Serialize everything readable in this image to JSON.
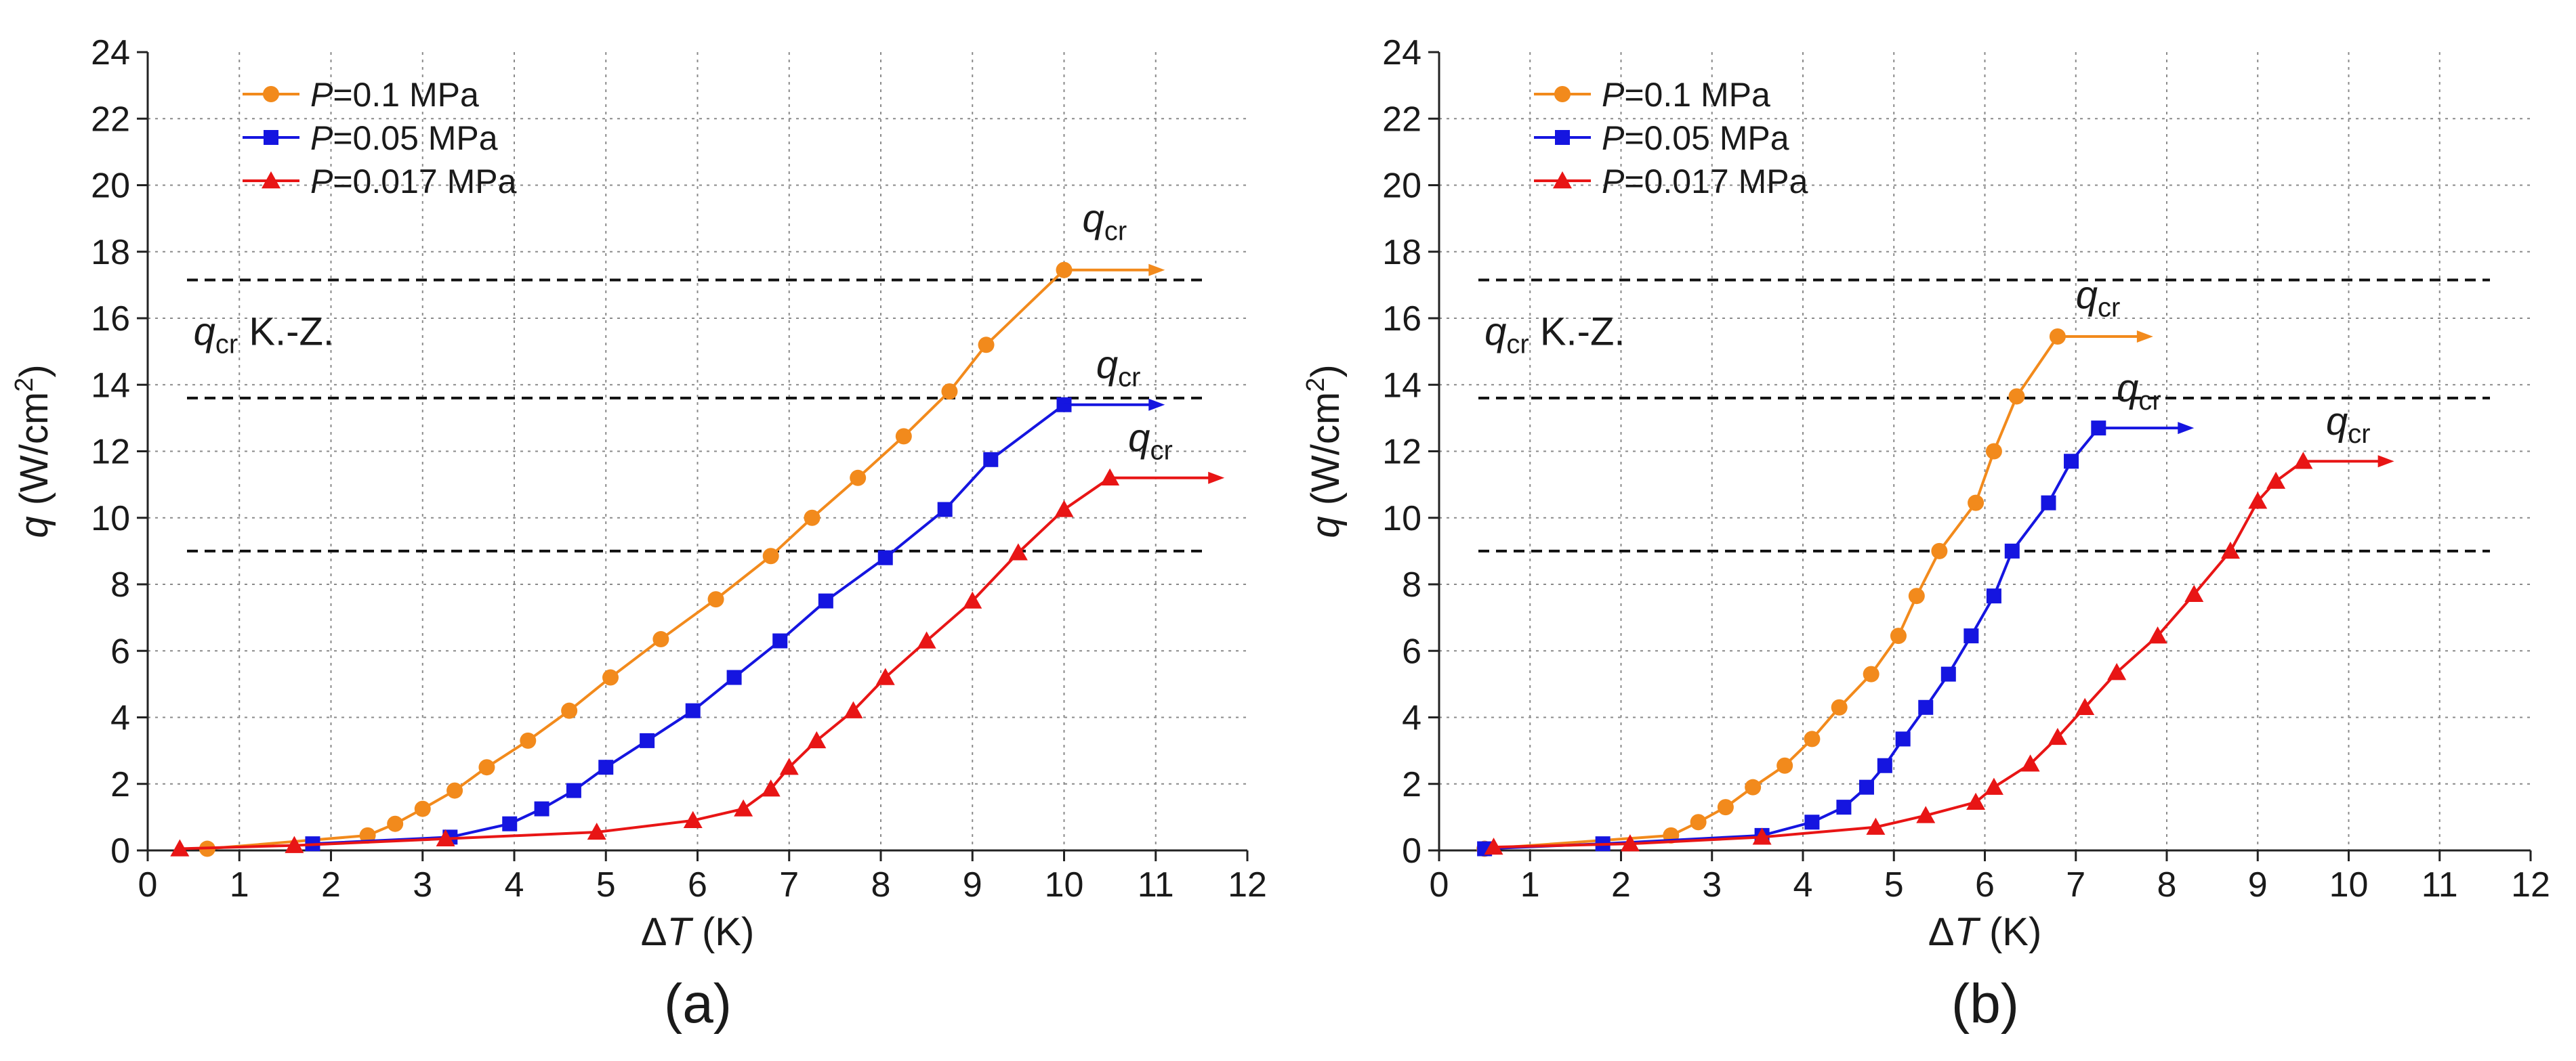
{
  "chart_data": [
    {
      "panel_label": "(a)",
      "type": "line",
      "xlabel_symbol": "Δ",
      "xlabel_var": "T",
      "xlabel_unit": " (K)",
      "ylabel_var": "q",
      "ylabel_unit_pre": " (W/cm",
      "ylabel_unit_sup": "2",
      "ylabel_unit_post": ")",
      "xlim": [
        0,
        12
      ],
      "ylim": [
        0,
        24
      ],
      "xticks": [
        "0",
        "1",
        "2",
        "3",
        "4",
        "5",
        "6",
        "7",
        "8",
        "9",
        "10",
        "11",
        "12"
      ],
      "yticks": [
        "0",
        "2",
        "4",
        "6",
        "8",
        "10",
        "12",
        "14",
        "16",
        "18",
        "20",
        "22",
        "24"
      ],
      "grid": true,
      "legend_position": "top-left",
      "kz_label_main": "q",
      "kz_label_sub": "cr",
      "kz_label_tail": " K.-Z.",
      "kz_label_at": [
        0.5,
        15.2
      ],
      "hlines": [
        17.15,
        13.6,
        9.0
      ],
      "series": [
        {
          "name_prefix": "P",
          "name_value": "=0.1 MPa",
          "color": "#f28a1c",
          "marker": "circle",
          "x": [
            0.65,
            2.4,
            2.7,
            3.0,
            3.35,
            3.7,
            4.15,
            4.6,
            5.05,
            5.6,
            6.2,
            6.8,
            7.25,
            7.75,
            8.25,
            8.75,
            9.15,
            10.0
          ],
          "y": [
            0.05,
            0.45,
            0.8,
            1.25,
            1.8,
            2.5,
            3.3,
            4.2,
            5.2,
            6.35,
            7.55,
            8.85,
            10.0,
            11.2,
            12.45,
            13.8,
            15.2,
            17.45
          ],
          "arrow": {
            "x0": 10.0,
            "x1": 11.1,
            "y": 17.45
          },
          "qcr_label": {
            "main": "q",
            "sub": "cr",
            "at": [
              10.2,
              18.6
            ]
          }
        },
        {
          "name_prefix": "P",
          "name_value": "=0.05 MPa",
          "color": "#1515e0",
          "marker": "square",
          "x": [
            1.8,
            3.3,
            3.95,
            4.3,
            4.65,
            5.0,
            5.45,
            5.95,
            6.4,
            6.9,
            7.4,
            8.05,
            8.7,
            9.2,
            10.0
          ],
          "y": [
            0.2,
            0.4,
            0.8,
            1.25,
            1.8,
            2.5,
            3.3,
            4.2,
            5.2,
            6.3,
            7.5,
            8.8,
            10.25,
            11.75,
            13.4
          ],
          "arrow": {
            "x0": 10.0,
            "x1": 11.1,
            "y": 13.4
          },
          "qcr_label": {
            "main": "q",
            "sub": "cr",
            "at": [
              10.35,
              14.2
            ]
          }
        },
        {
          "name_prefix": "P",
          "name_value": "=0.017 MPa",
          "color": "#e81515",
          "marker": "triangle",
          "x": [
            0.35,
            1.6,
            3.25,
            4.9,
            5.95,
            6.5,
            6.8,
            7.0,
            7.3,
            7.7,
            8.05,
            8.5,
            9.0,
            9.5,
            10.0,
            10.5
          ],
          "y": [
            0.05,
            0.15,
            0.35,
            0.55,
            0.9,
            1.25,
            1.85,
            2.5,
            3.3,
            4.2,
            5.2,
            6.3,
            7.5,
            8.95,
            10.25,
            11.2
          ],
          "arrow": {
            "x0": 10.5,
            "x1": 11.75,
            "y": 11.2
          },
          "qcr_label": {
            "main": "q",
            "sub": "cr",
            "at": [
              10.7,
              12.0
            ]
          }
        }
      ]
    },
    {
      "panel_label": "(b)",
      "type": "line",
      "xlabel_symbol": "Δ",
      "xlabel_var": "T",
      "xlabel_unit": " (K)",
      "ylabel_var": "q",
      "ylabel_unit_pre": " (W/cm",
      "ylabel_unit_sup": "2",
      "ylabel_unit_post": ")",
      "xlim": [
        0,
        12
      ],
      "ylim": [
        0,
        24
      ],
      "xticks": [
        "0",
        "1",
        "2",
        "3",
        "4",
        "5",
        "6",
        "7",
        "8",
        "9",
        "10",
        "11",
        "12"
      ],
      "yticks": [
        "0",
        "2",
        "4",
        "6",
        "8",
        "10",
        "12",
        "14",
        "16",
        "18",
        "20",
        "22",
        "24"
      ],
      "grid": true,
      "legend_position": "top-left",
      "kz_label_main": "q",
      "kz_label_sub": "cr",
      "kz_label_tail": " K.-Z.",
      "kz_label_at": [
        0.5,
        15.2
      ],
      "hlines": [
        17.15,
        13.6,
        9.0
      ],
      "series": [
        {
          "name_prefix": "P",
          "name_value": "=0.1 MPa",
          "color": "#f28a1c",
          "marker": "circle",
          "x": [
            0.5,
            2.55,
            2.85,
            3.15,
            3.45,
            3.8,
            4.1,
            4.4,
            4.75,
            5.05,
            5.25,
            5.5,
            5.9,
            6.1,
            6.35,
            6.8
          ],
          "y": [
            0.05,
            0.45,
            0.85,
            1.3,
            1.9,
            2.55,
            3.35,
            4.3,
            5.3,
            6.45,
            7.65,
            9.0,
            10.45,
            12.0,
            13.65,
            15.45
          ],
          "arrow": {
            "x0": 6.8,
            "x1": 7.85,
            "y": 15.45
          },
          "qcr_label": {
            "main": "q",
            "sub": "cr",
            "at": [
              7.0,
              16.3
            ]
          }
        },
        {
          "name_prefix": "P",
          "name_value": "=0.05 MPa",
          "color": "#1515e0",
          "marker": "square",
          "x": [
            0.5,
            1.8,
            3.55,
            4.1,
            4.45,
            4.7,
            4.9,
            5.1,
            5.35,
            5.6,
            5.85,
            6.1,
            6.3,
            6.7,
            6.95,
            7.25
          ],
          "y": [
            0.05,
            0.2,
            0.45,
            0.85,
            1.3,
            1.9,
            2.55,
            3.35,
            4.3,
            5.3,
            6.45,
            7.65,
            9.0,
            10.45,
            11.7,
            12.7
          ],
          "arrow": {
            "x0": 7.25,
            "x1": 8.3,
            "y": 12.7
          },
          "qcr_label": {
            "main": "q",
            "sub": "cr",
            "at": [
              7.45,
              13.5
            ]
          }
        },
        {
          "name_prefix": "P",
          "name_value": "=0.017 MPa",
          "color": "#e81515",
          "marker": "triangle",
          "x": [
            0.6,
            2.1,
            3.55,
            4.8,
            5.35,
            5.9,
            6.1,
            6.5,
            6.8,
            7.1,
            7.45,
            7.9,
            8.3,
            8.7,
            9.0,
            9.2,
            9.5
          ],
          "y": [
            0.1,
            0.2,
            0.4,
            0.7,
            1.05,
            1.45,
            1.9,
            2.6,
            3.4,
            4.3,
            5.35,
            6.45,
            7.7,
            9.0,
            10.5,
            11.1,
            11.7
          ],
          "arrow": {
            "x0": 9.5,
            "x1": 10.5,
            "y": 11.7
          },
          "qcr_label": {
            "main": "q",
            "sub": "cr",
            "at": [
              9.75,
              12.5
            ]
          }
        }
      ]
    }
  ]
}
